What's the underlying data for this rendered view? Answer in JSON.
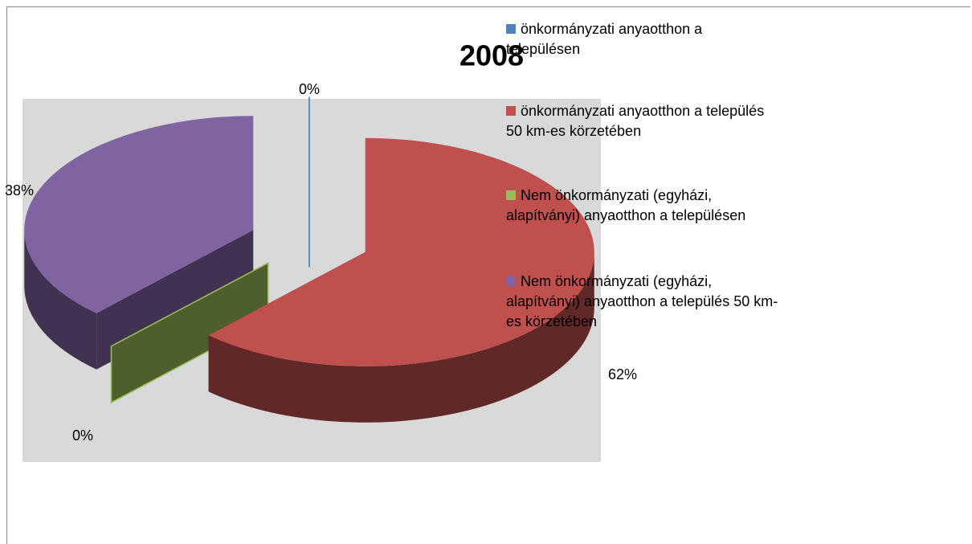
{
  "chart_data": {
    "type": "pie",
    "title": "2008",
    "categories": [
      "önkormányzati anyaotthon a településen",
      "önkormányzati anyaotthon a település 50 km-es körzetében",
      "Nem önkormányzati (egyházi, alapítványi) anyaotthon a településen",
      "Nem önkormányzati (egyházi, alapítványi) anyaotthon a település 50 km-es körzetében"
    ],
    "values": [
      0,
      62,
      0,
      38
    ],
    "value_labels": [
      "0%",
      "62%",
      "0%",
      "38%"
    ],
    "colors": [
      "#4f81bd",
      "#c0504d",
      "#9bbb59",
      "#8064a2"
    ],
    "legend": "right"
  }
}
